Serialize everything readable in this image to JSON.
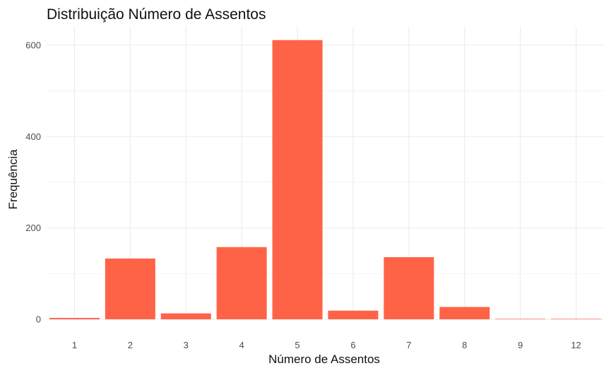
{
  "chart_data": {
    "type": "bar",
    "title": "Distribuição Número de Assentos",
    "xlabel": "Número de Assentos",
    "ylabel": "Frequência",
    "categories": [
      "1",
      "2",
      "3",
      "4",
      "5",
      "6",
      "7",
      "8",
      "9",
      "12"
    ],
    "values": [
      3,
      133,
      13,
      158,
      611,
      19,
      136,
      27,
      1,
      1
    ],
    "ylim": [
      0,
      640
    ],
    "yticks": [
      0,
      200,
      400,
      600
    ],
    "grid": true,
    "legend": "none",
    "bar_color": "#FF6347"
  }
}
